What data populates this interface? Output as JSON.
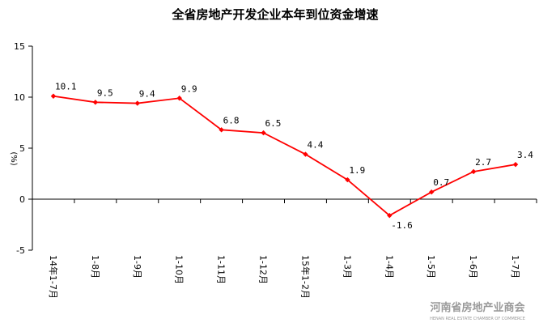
{
  "chart_data": {
    "type": "line",
    "title": "全省房地产开发企业本年到位资金增速",
    "ylabel": "(%)",
    "xlabel": "",
    "ylim": [
      -5,
      15
    ],
    "yticks": [
      "15",
      "10",
      "5",
      "0",
      "-5"
    ],
    "categories": [
      "14年1-7月",
      "1-8月",
      "1-9月",
      "1-10月",
      "1-11月",
      "1-12月",
      "15年1-2月",
      "1-3月",
      "1-4月",
      "1-5月",
      "1-6月",
      "1-7月"
    ],
    "series": [
      {
        "values": [
          10.1,
          9.5,
          9.4,
          9.9,
          6.8,
          6.5,
          4.4,
          1.9,
          -1.6,
          0.7,
          2.7,
          3.4
        ],
        "labels": [
          "10.1",
          "9.5",
          "9.4",
          "9.9",
          "6.8",
          "6.5",
          "4.4",
          "1.9",
          "-1.6",
          "0.7",
          "2.7",
          "3.4"
        ],
        "color": "#ff0000"
      }
    ],
    "grid": false,
    "legend": "none"
  },
  "watermark": {
    "text_cn": "河南省房地产业商会",
    "text_en": "HENAN REAL ESTATE CHAMBER OF COMMERCE",
    "color": "#9a9a9a"
  }
}
